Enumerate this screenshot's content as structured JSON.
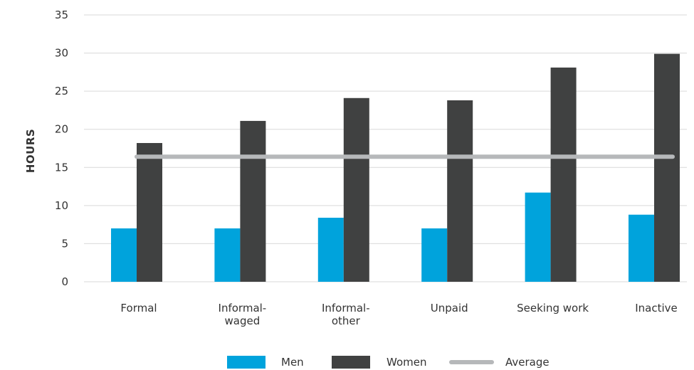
{
  "chart_data": {
    "type": "bar",
    "categories": [
      [
        "Formal"
      ],
      [
        "Informal-",
        "waged"
      ],
      [
        "Informal-",
        "other"
      ],
      [
        "Unpaid"
      ],
      [
        "Seeking work"
      ],
      [
        "Inactive"
      ]
    ],
    "series": [
      {
        "name": "Men",
        "values": [
          7.0,
          7.0,
          8.4,
          7.0,
          11.7,
          8.8
        ],
        "color": "#00a3dc"
      },
      {
        "name": "Women",
        "values": [
          18.2,
          21.1,
          24.1,
          23.8,
          28.1,
          29.9
        ],
        "color": "#404141"
      }
    ],
    "average": {
      "name": "Average",
      "value": 16.4,
      "color": "#b6b8ba"
    },
    "ylabel": "HOURS",
    "xlabel": "",
    "ylim": [
      0,
      35
    ],
    "yticks": [
      "0",
      "5",
      "10",
      "15",
      "20",
      "25",
      "30",
      "35"
    ],
    "grid": true,
    "legend_position": "bottom"
  }
}
